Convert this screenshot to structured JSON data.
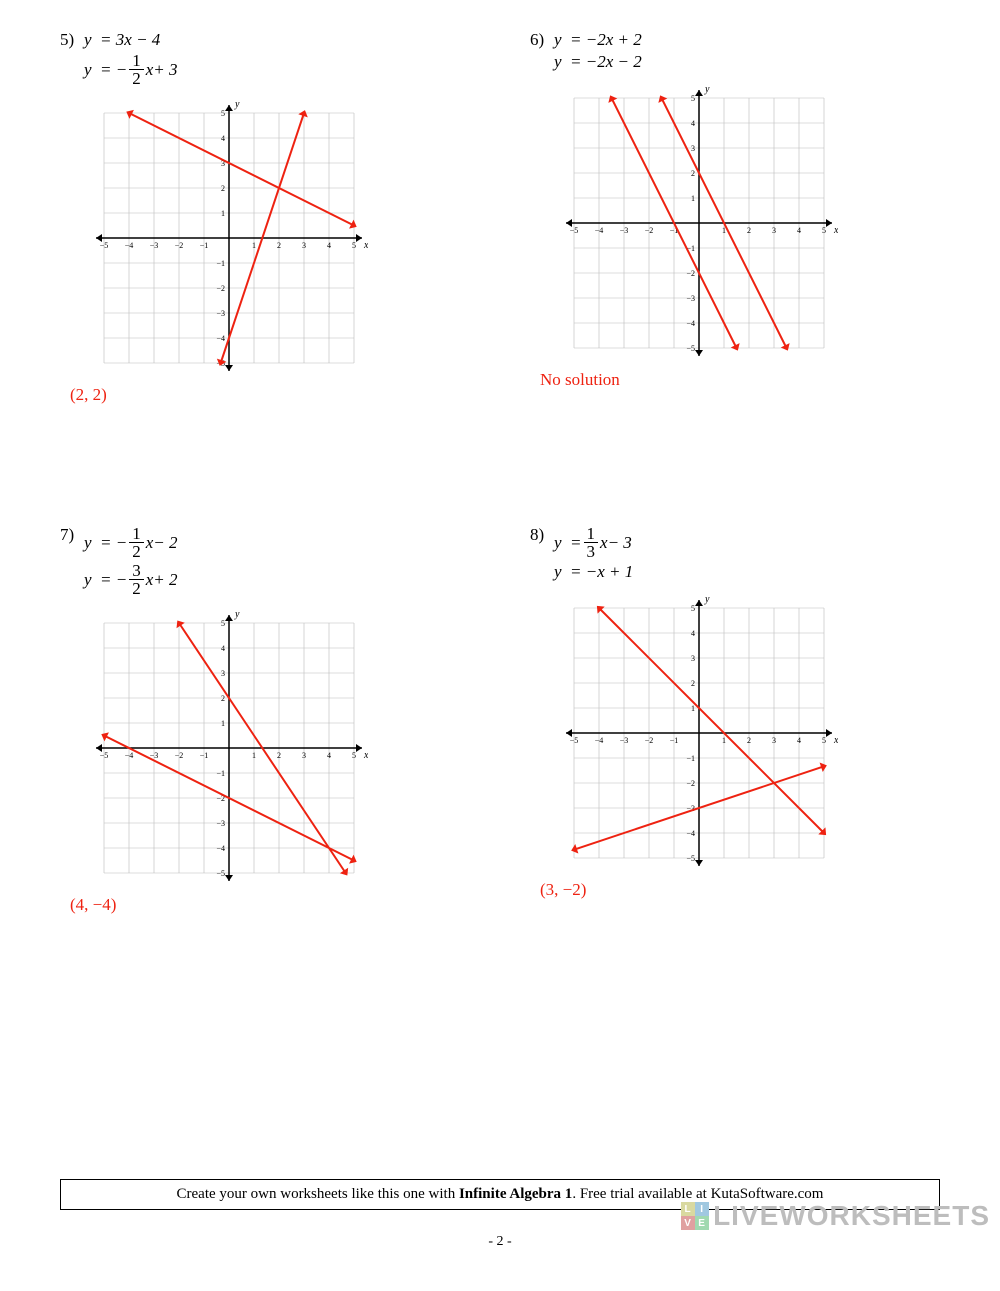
{
  "graph": {
    "size": 250,
    "domain": [
      -5,
      5
    ],
    "tick_step": 1,
    "grid_color": "#bbbbbb",
    "axis_color": "#000000",
    "line_color": "#e21",
    "line_width": 2,
    "tick_fontsize": 8,
    "axis_label_fontsize": 10
  },
  "problems": [
    {
      "number": "5)",
      "eq1": {
        "text": "y = 3x − 4"
      },
      "eq2": {
        "prefix": "y = − ",
        "frac_num": "1",
        "frac_den": "2",
        "suffix": "x + 3"
      },
      "lines": [
        {
          "m": 3,
          "b": -4
        },
        {
          "m": -0.5,
          "b": 3
        }
      ],
      "answer": "(2, 2)"
    },
    {
      "number": "6)",
      "eq1": {
        "text": "y = −2x + 2"
      },
      "eq2": {
        "text": "y = −2x − 2"
      },
      "lines": [
        {
          "m": -2,
          "b": 2
        },
        {
          "m": -2,
          "b": -2
        }
      ],
      "answer": "No solution"
    },
    {
      "number": "7)",
      "eq1": {
        "prefix": "y = − ",
        "frac_num": "1",
        "frac_den": "2",
        "suffix": "x − 2"
      },
      "eq2": {
        "prefix": "y = − ",
        "frac_num": "3",
        "frac_den": "2",
        "suffix": "x + 2"
      },
      "lines": [
        {
          "m": -0.5,
          "b": -2
        },
        {
          "m": -1.5,
          "b": 2
        }
      ],
      "answer": "(4, −4)"
    },
    {
      "number": "8)",
      "eq1": {
        "prefix": "y = ",
        "frac_num": "1",
        "frac_den": "3",
        "suffix": "x − 3"
      },
      "eq2": {
        "text": "y = −x + 1"
      },
      "lines": [
        {
          "m": 0.3333333,
          "b": -3
        },
        {
          "m": -1,
          "b": 1
        }
      ],
      "answer": "(3, −2)"
    }
  ],
  "footer": {
    "pre": "Create your own worksheets like this one with ",
    "bold": "Infinite Algebra 1",
    "post": ".  Free trial available at KutaSoftware.com"
  },
  "page_number": "- 2 -",
  "brand": "LIVEWORKSHEETS",
  "badge_letters": [
    "L",
    "I",
    "V",
    "E"
  ]
}
